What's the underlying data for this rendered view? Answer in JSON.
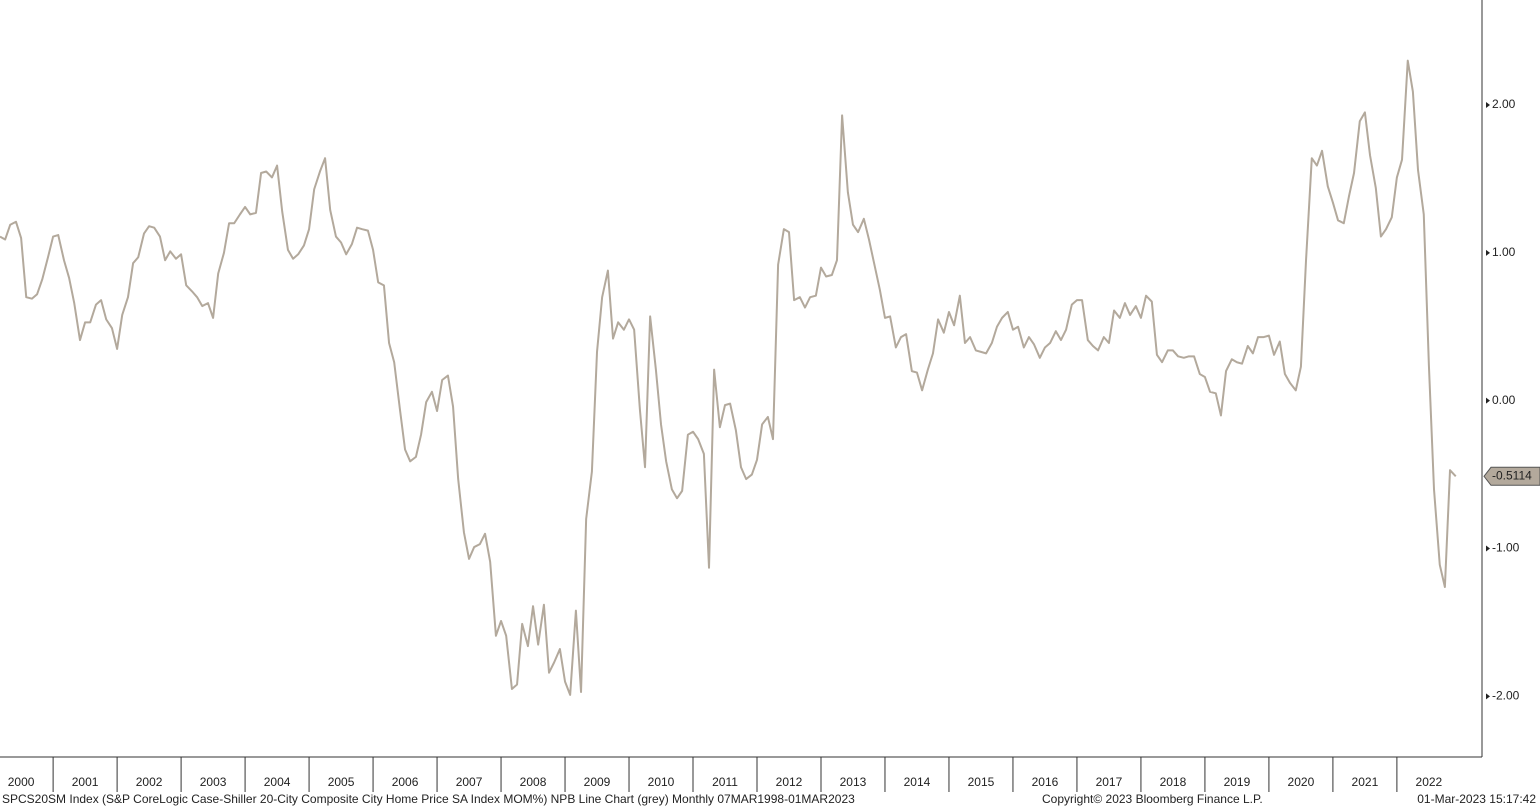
{
  "chart_data": {
    "type": "line",
    "footer_left": "SPCS20SM Index (S&P CoreLogic Case-Shiller 20-City Composite City Home Price SA Index MOM%) NPB Line Chart (grey)  Monthly 07MAR1998-01MAR2023",
    "footer_center": "Copyright© 2023 Bloomberg Finance L.P.",
    "footer_right": "01-Mar-2023 15:17:42",
    "xlim": [
      2000.17,
      2023.33
    ],
    "ylim": [
      -2.41,
      2.71
    ],
    "xticks": [
      2000,
      2001,
      2002,
      2003,
      2004,
      2005,
      2006,
      2007,
      2008,
      2009,
      2010,
      2011,
      2012,
      2013,
      2014,
      2015,
      2016,
      2017,
      2018,
      2019,
      2020,
      2021,
      2022
    ],
    "yticks": [
      {
        "value": 2,
        "label": "2.00"
      },
      {
        "value": 1,
        "label": "1.00"
      },
      {
        "value": 0,
        "label": "0.00"
      },
      {
        "value": -1,
        "label": "-1.00"
      },
      {
        "value": -2,
        "label": "-2.00"
      }
    ],
    "series": [
      {
        "name": "SPCS20SM Index",
        "color": "#b3a99c",
        "x": [
          2000.17,
          2000.25,
          2000.33,
          2000.42,
          2000.5,
          2000.58,
          2000.67,
          2000.75,
          2000.83,
          2000.92,
          2001.0,
          2001.08,
          2001.17,
          2001.25,
          2001.33,
          2001.42,
          2001.5,
          2001.58,
          2001.67,
          2001.75,
          2001.83,
          2001.92,
          2002.0,
          2002.08,
          2002.17,
          2002.25,
          2002.33,
          2002.42,
          2002.5,
          2002.58,
          2002.67,
          2002.75,
          2002.83,
          2002.92,
          2003.0,
          2003.08,
          2003.17,
          2003.25,
          2003.33,
          2003.42,
          2003.5,
          2003.58,
          2003.67,
          2003.75,
          2003.83,
          2003.92,
          2004.0,
          2004.08,
          2004.17,
          2004.25,
          2004.33,
          2004.42,
          2004.5,
          2004.58,
          2004.67,
          2004.75,
          2004.83,
          2004.92,
          2005.0,
          2005.08,
          2005.17,
          2005.25,
          2005.33,
          2005.42,
          2005.5,
          2005.58,
          2005.67,
          2005.75,
          2005.83,
          2005.92,
          2006.0,
          2006.08,
          2006.17,
          2006.25,
          2006.33,
          2006.42,
          2006.5,
          2006.58,
          2006.67,
          2006.75,
          2006.83,
          2006.92,
          2007.0,
          2007.08,
          2007.17,
          2007.25,
          2007.33,
          2007.42,
          2007.5,
          2007.58,
          2007.67,
          2007.75,
          2007.83,
          2007.92,
          2008.0,
          2008.08,
          2008.17,
          2008.25,
          2008.33,
          2008.42,
          2008.5,
          2008.58,
          2008.67,
          2008.75,
          2008.83,
          2008.92,
          2009.0,
          2009.08,
          2009.17,
          2009.25,
          2009.33,
          2009.42,
          2009.5,
          2009.58,
          2009.67,
          2009.75,
          2009.83,
          2009.92,
          2010.0,
          2010.08,
          2010.17,
          2010.25,
          2010.33,
          2010.42,
          2010.5,
          2010.58,
          2010.67,
          2010.75,
          2010.83,
          2010.92,
          2011.0,
          2011.08,
          2011.17,
          2011.25,
          2011.33,
          2011.42,
          2011.5,
          2011.58,
          2011.67,
          2011.75,
          2011.83,
          2011.92,
          2012.0,
          2012.08,
          2012.17,
          2012.25,
          2012.33,
          2012.42,
          2012.5,
          2012.58,
          2012.67,
          2012.75,
          2012.83,
          2012.92,
          2013.0,
          2013.08,
          2013.17,
          2013.25,
          2013.33,
          2013.42,
          2013.5,
          2013.58,
          2013.67,
          2013.75,
          2013.83,
          2013.92,
          2014.0,
          2014.08,
          2014.17,
          2014.25,
          2014.33,
          2014.42,
          2014.5,
          2014.58,
          2014.67,
          2014.75,
          2014.83,
          2014.92,
          2015.0,
          2015.08,
          2015.17,
          2015.25,
          2015.33,
          2015.42,
          2015.5,
          2015.58,
          2015.67,
          2015.75,
          2015.83,
          2015.92,
          2016.0,
          2016.08,
          2016.17,
          2016.25,
          2016.33,
          2016.42,
          2016.5,
          2016.58,
          2016.67,
          2016.75,
          2016.83,
          2016.92,
          2017.0,
          2017.08,
          2017.17,
          2017.25,
          2017.33,
          2017.42,
          2017.5,
          2017.58,
          2017.67,
          2017.75,
          2017.83,
          2017.92,
          2018.0,
          2018.08,
          2018.17,
          2018.25,
          2018.33,
          2018.42,
          2018.5,
          2018.58,
          2018.67,
          2018.75,
          2018.83,
          2018.92,
          2019.0,
          2019.08,
          2019.17,
          2019.25,
          2019.33,
          2019.42,
          2019.5,
          2019.58,
          2019.67,
          2019.75,
          2019.83,
          2019.92,
          2020.0,
          2020.08,
          2020.17,
          2020.25,
          2020.33,
          2020.42,
          2020.5,
          2020.58,
          2020.67,
          2020.75,
          2020.83,
          2020.92,
          2021.0,
          2021.08,
          2021.17,
          2021.25,
          2021.33,
          2021.42,
          2021.5,
          2021.58,
          2021.67,
          2021.75,
          2021.83,
          2021.92,
          2022.0,
          2022.08,
          2022.17,
          2022.25,
          2022.33,
          2022.42,
          2022.5,
          2022.58,
          2022.67,
          2022.75,
          2022.83,
          2022.92
        ],
        "values": [
          1.11,
          1.09,
          1.19,
          1.21,
          1.1,
          0.7,
          0.69,
          0.72,
          0.82,
          0.97,
          1.11,
          1.12,
          0.95,
          0.83,
          0.66,
          0.41,
          0.53,
          0.53,
          0.65,
          0.68,
          0.55,
          0.49,
          0.35,
          0.58,
          0.7,
          0.93,
          0.97,
          1.13,
          1.18,
          1.17,
          1.11,
          0.95,
          1.01,
          0.96,
          0.99,
          0.78,
          0.74,
          0.7,
          0.64,
          0.66,
          0.56,
          0.86,
          1.0,
          1.2,
          1.2,
          1.26,
          1.31,
          1.26,
          1.27,
          1.54,
          1.55,
          1.51,
          1.59,
          1.28,
          1.02,
          0.96,
          0.99,
          1.05,
          1.16,
          1.43,
          1.55,
          1.64,
          1.29,
          1.11,
          1.07,
          0.99,
          1.06,
          1.17,
          1.16,
          1.15,
          1.02,
          0.8,
          0.78,
          0.39,
          0.26,
          -0.06,
          -0.33,
          -0.41,
          -0.38,
          -0.23,
          -0.01,
          0.06,
          -0.07,
          0.14,
          0.17,
          -0.04,
          -0.53,
          -0.89,
          -1.07,
          -0.99,
          -0.97,
          -0.9,
          -1.09,
          -1.59,
          -1.49,
          -1.59,
          -1.95,
          -1.92,
          -1.51,
          -1.66,
          -1.39,
          -1.65,
          -1.38,
          -1.84,
          -1.77,
          -1.68,
          -1.9,
          -1.99,
          -1.42,
          -1.97,
          -0.8,
          -0.48,
          0.33,
          0.7,
          0.88,
          0.42,
          0.53,
          0.48,
          0.55,
          0.48,
          -0.06,
          -0.45,
          0.57,
          0.21,
          -0.16,
          -0.41,
          -0.6,
          -0.66,
          -0.61,
          -0.23,
          -0.21,
          -0.26,
          -0.36,
          -1.13,
          0.21,
          -0.18,
          -0.03,
          -0.02,
          -0.2,
          -0.45,
          -0.53,
          -0.5,
          -0.4,
          -0.16,
          -0.11,
          -0.26,
          0.92,
          1.16,
          1.14,
          0.68,
          0.7,
          0.63,
          0.7,
          0.71,
          0.9,
          0.84,
          0.85,
          0.95,
          1.93,
          1.41,
          1.19,
          1.14,
          1.23,
          1.09,
          0.93,
          0.75,
          0.56,
          0.57,
          0.36,
          0.43,
          0.45,
          0.2,
          0.19,
          0.07,
          0.21,
          0.32,
          0.55,
          0.46,
          0.6,
          0.51,
          0.71,
          0.39,
          0.43,
          0.34,
          0.33,
          0.32,
          0.39,
          0.5,
          0.56,
          0.6,
          0.48,
          0.5,
          0.36,
          0.43,
          0.38,
          0.29,
          0.36,
          0.39,
          0.47,
          0.41,
          0.48,
          0.65,
          0.68,
          0.68,
          0.41,
          0.37,
          0.34,
          0.43,
          0.39,
          0.61,
          0.56,
          0.66,
          0.58,
          0.64,
          0.56,
          0.71,
          0.67,
          0.31,
          0.26,
          0.34,
          0.34,
          0.3,
          0.29,
          0.3,
          0.3,
          0.18,
          0.16,
          0.06,
          0.05,
          -0.1,
          0.2,
          0.28,
          0.26,
          0.25,
          0.37,
          0.32,
          0.43,
          0.43,
          0.44,
          0.31,
          0.4,
          0.18,
          0.12,
          0.07,
          0.23,
          0.95,
          1.64,
          1.59,
          1.69,
          1.45,
          1.34,
          1.22,
          1.2,
          1.38,
          1.54,
          1.89,
          1.95,
          1.66,
          1.44,
          1.11,
          1.16,
          1.24,
          1.51,
          1.63,
          2.3,
          2.09,
          1.56,
          1.26,
          0.24,
          -0.6,
          -1.11,
          -1.26,
          -0.47,
          -0.5114
        ]
      }
    ]
  }
}
